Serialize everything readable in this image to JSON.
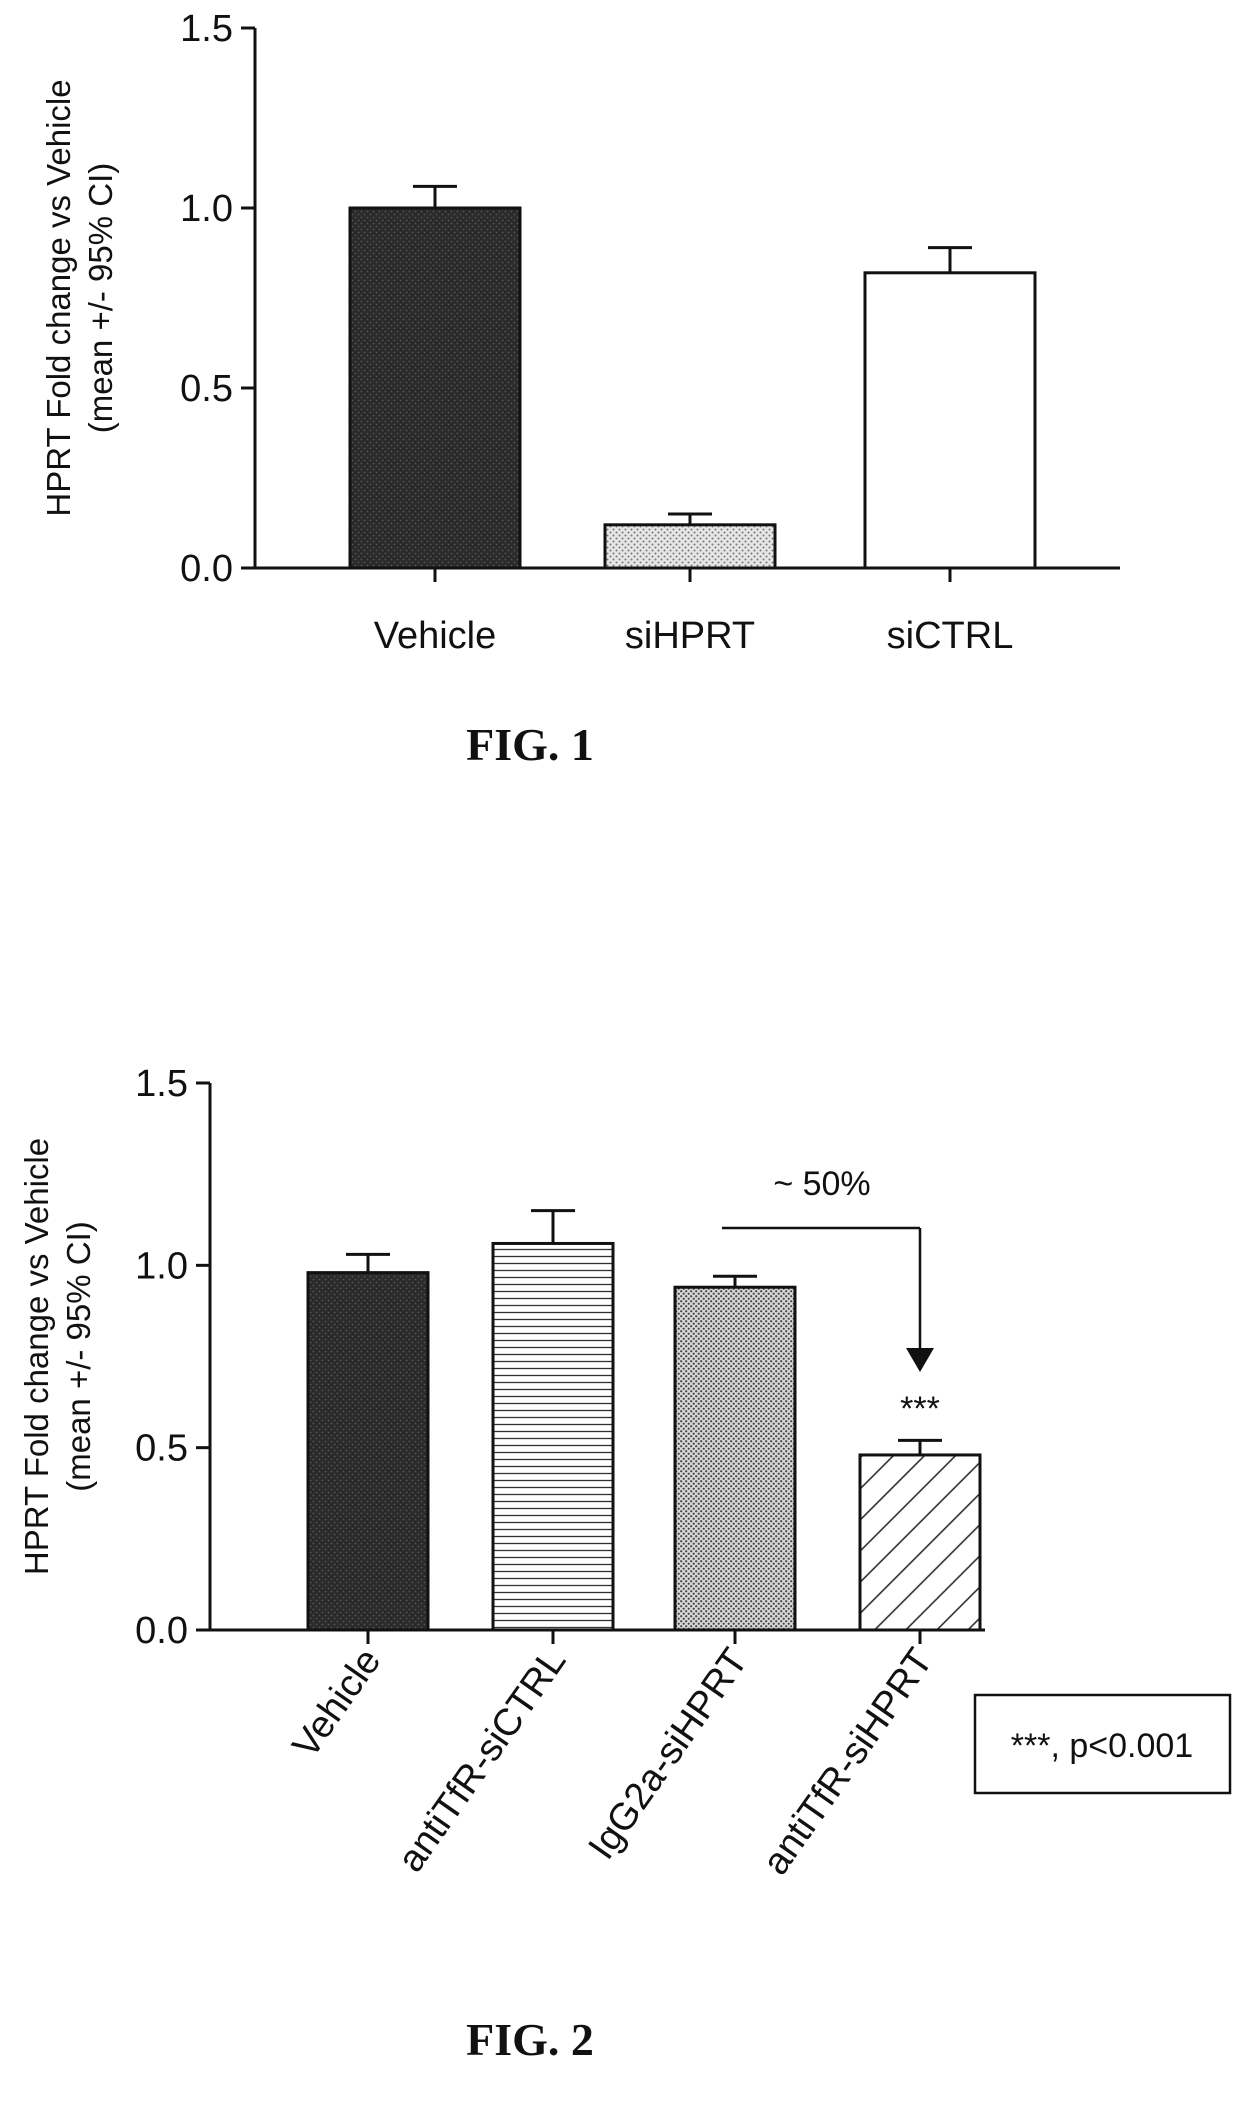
{
  "chart_data": [
    {
      "type": "bar",
      "figure_label": "FIG. 1",
      "categories": [
        "Vehicle",
        "siHPRT",
        "siCTRL"
      ],
      "values": [
        1.0,
        0.12,
        0.82
      ],
      "error_upper": [
        1.06,
        0.15,
        0.89
      ],
      "bar_styles": [
        "solid-dark",
        "dotted-light",
        "white"
      ],
      "ylabel_line1": "HPRT Fold change vs Vehicle",
      "ylabel_line2": "(mean +/- 95% CI)",
      "ylim": [
        0,
        1.5
      ],
      "yticks": [
        "0.0",
        "0.5",
        "1.0",
        "1.5"
      ],
      "grid": false
    },
    {
      "type": "bar",
      "figure_label": "FIG. 2",
      "categories": [
        "Vehicle",
        "antiTfR-siCTRL",
        "IgG2a-siHPRT",
        "antiTfR-siHPRT"
      ],
      "values": [
        0.98,
        1.06,
        0.94,
        0.48
      ],
      "error_upper": [
        1.03,
        1.15,
        0.97,
        0.52
      ],
      "bar_styles": [
        "solid-dark",
        "horizontal-lines",
        "dotted-medium",
        "diagonal-hatch"
      ],
      "ylabel_line1": "HPRT Fold change vs Vehicle",
      "ylabel_line2": "(mean +/- 95% CI)",
      "ylim": [
        0,
        1.5
      ],
      "yticks": [
        "0.0",
        "0.5",
        "1.0",
        "1.5"
      ],
      "grid": false,
      "annotations": {
        "bracket_label": "~ 50%",
        "significance": "***",
        "legend_text": "***, p<0.001"
      }
    }
  ]
}
